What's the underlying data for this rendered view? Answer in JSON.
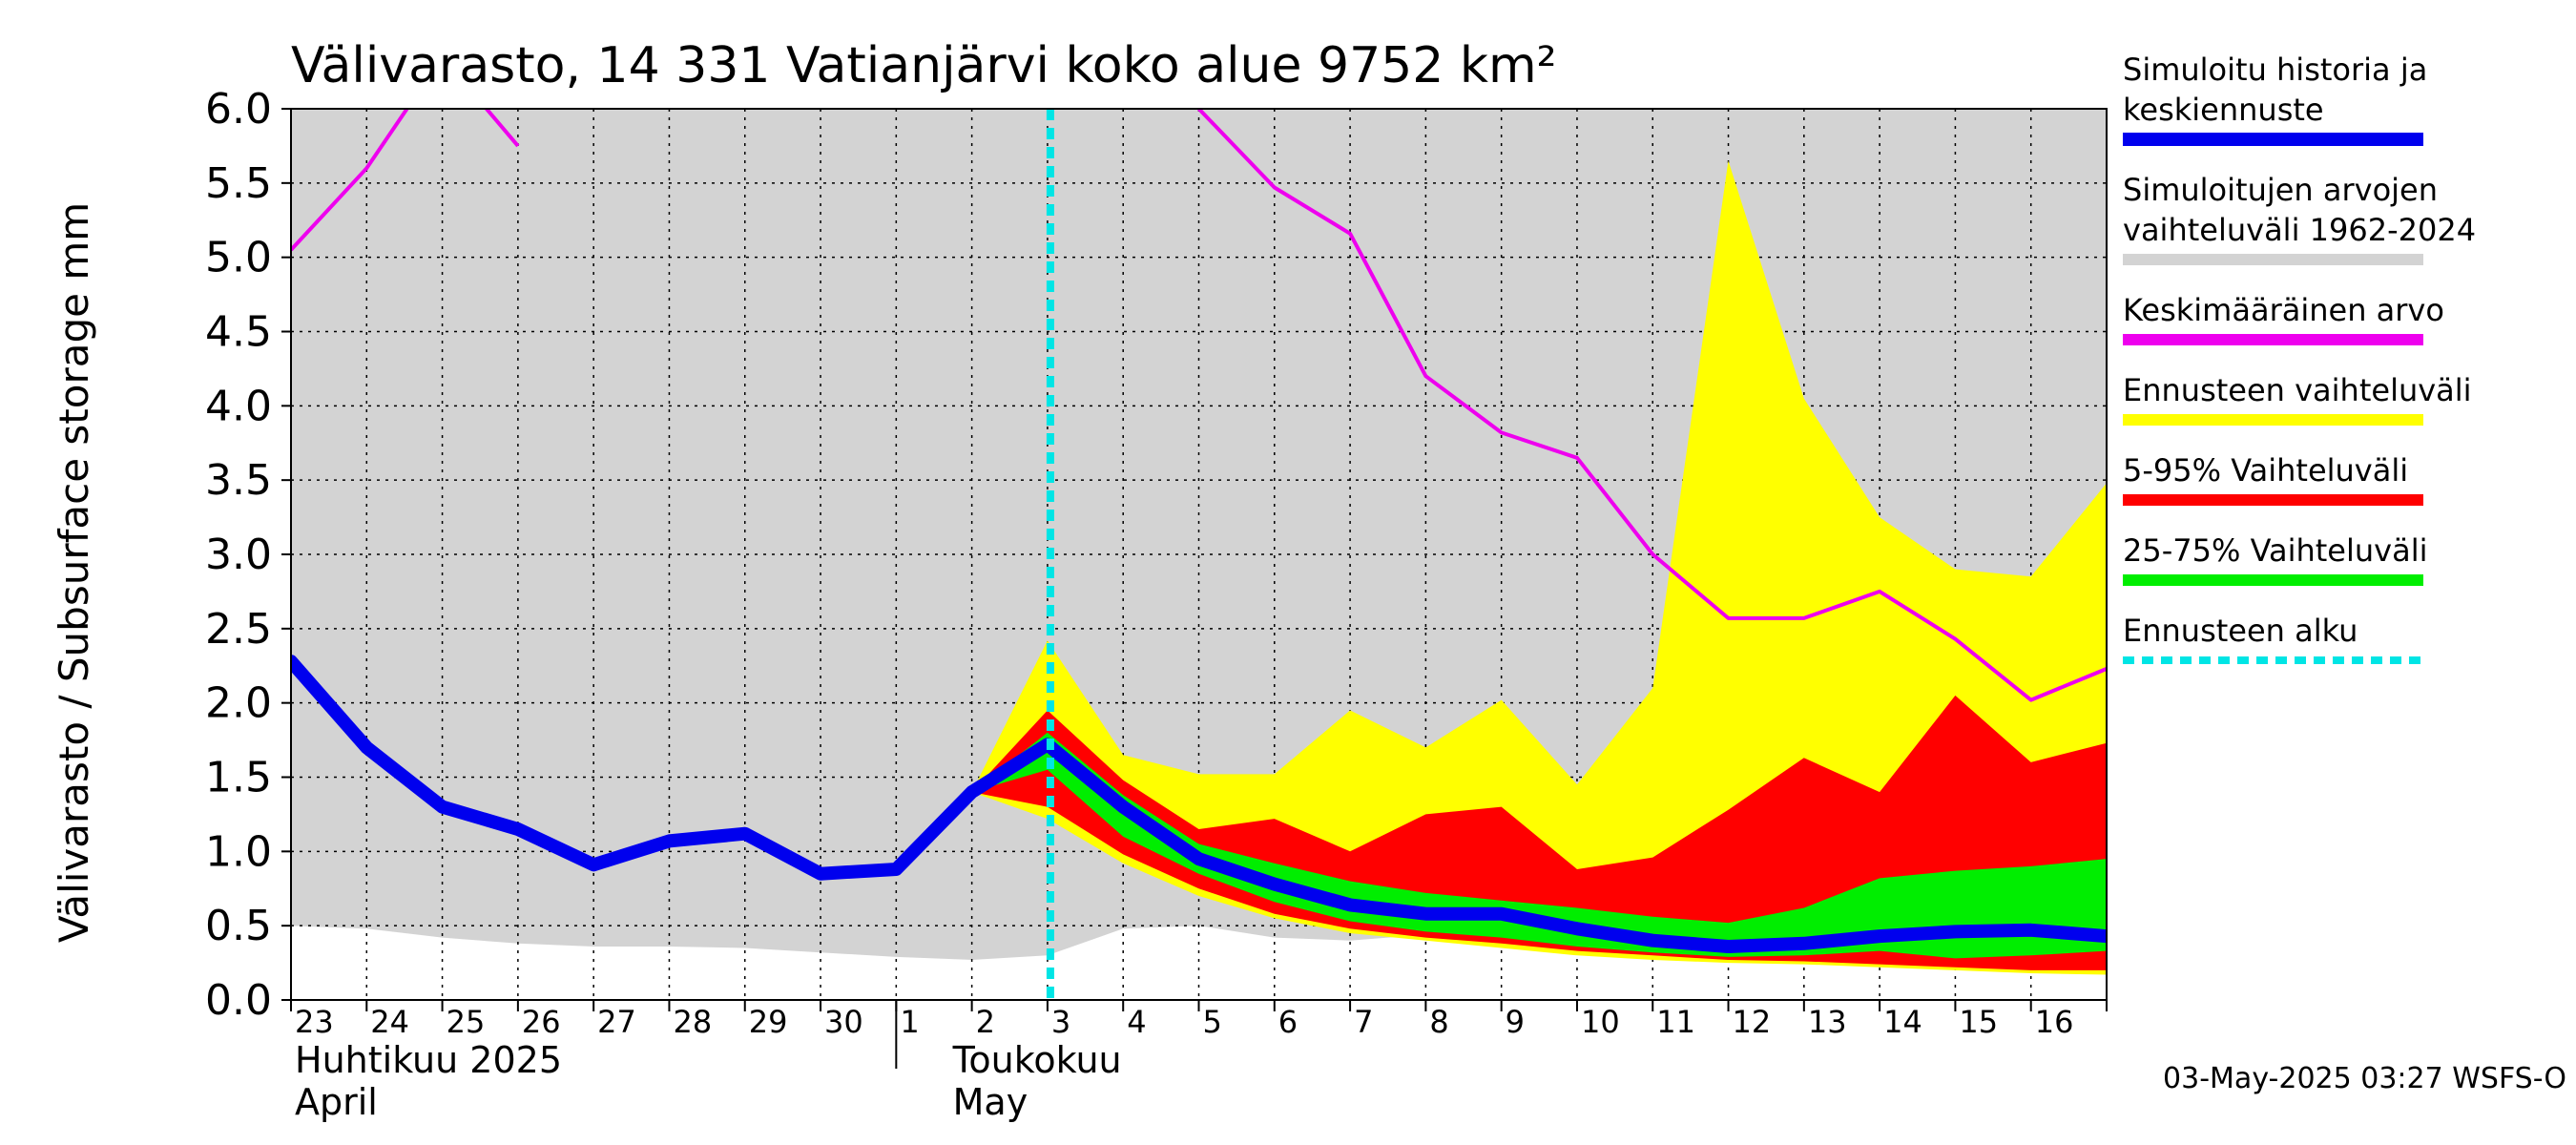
{
  "chart_data": {
    "type": "area",
    "title": "Välivarasto, 14 331 Vatianjärvi koko alue 9752 km²",
    "ylabel": "Välivarasto / Subsurface storage  mm",
    "ylim": [
      0,
      6
    ],
    "yticks": [
      "0.0",
      "0.5",
      "1.0",
      "1.5",
      "2.0",
      "2.5",
      "3.0",
      "3.5",
      "4.0",
      "4.5",
      "5.0",
      "5.5",
      "6.0"
    ],
    "x_day_labels": [
      "23",
      "24",
      "25",
      "26",
      "27",
      "28",
      "29",
      "30",
      "1",
      "2",
      "3",
      "4",
      "5",
      "6",
      "7",
      "8",
      "9",
      "10",
      "11",
      "12",
      "13",
      "14",
      "15",
      "16"
    ],
    "month_labels": [
      {
        "line1": "Huhtikuu  2025",
        "line2": "April"
      },
      {
        "line1": "Toukokuu",
        "line2": "May"
      }
    ],
    "x_dates": [
      "2025-04-23",
      "2025-04-24",
      "2025-04-25",
      "2025-04-26",
      "2025-04-27",
      "2025-04-28",
      "2025-04-29",
      "2025-04-30",
      "2025-05-01",
      "2025-05-02",
      "2025-05-03",
      "2025-05-04",
      "2025-05-05",
      "2025-05-06",
      "2025-05-07",
      "2025-05-08",
      "2025-05-09",
      "2025-05-10",
      "2025-05-11",
      "2025-05-12",
      "2025-05-13",
      "2025-05-14",
      "2025-05-15",
      "2025-05-16",
      "2025-05-17"
    ],
    "forecast_start": "2025-05-03",
    "series": [
      {
        "name": "Simuloitujen arvojen vaihteluväli 1962-2024",
        "color": "#d3d3d3",
        "lower": [
          0.5,
          0.48,
          0.42,
          0.38,
          0.36,
          0.36,
          0.35,
          0.32,
          0.29,
          0.27,
          0.3,
          0.48,
          0.5,
          0.42,
          0.4,
          0.44,
          0.48,
          0.5,
          0.54,
          0.55,
          0.5,
          0.44,
          0.4,
          0.38,
          0.36
        ],
        "upper": [
          6,
          6,
          6,
          6,
          6,
          6,
          6,
          6,
          6,
          6,
          6,
          6,
          6,
          6,
          6,
          6,
          6,
          6,
          6,
          6,
          6,
          6,
          6,
          6,
          6
        ]
      },
      {
        "name": "Ennusteen vaihteluväli",
        "color": "#ffff00",
        "x_start": "2025-05-02",
        "lower": [
          1.4,
          1.22,
          0.92,
          0.7,
          0.55,
          0.45,
          0.4,
          0.35,
          0.3,
          0.27,
          0.25,
          0.24,
          0.22,
          0.2,
          0.18,
          0.17
        ],
        "upper": [
          1.4,
          2.42,
          1.65,
          1.52,
          1.52,
          1.95,
          1.7,
          2.02,
          1.45,
          2.1,
          5.65,
          4.05,
          3.25,
          2.9,
          2.85,
          3.48
        ]
      },
      {
        "name": "5-95% Vaihteluväli",
        "color": "#ff0000",
        "x_start": "2025-05-02",
        "lower": [
          1.4,
          1.3,
          0.98,
          0.75,
          0.58,
          0.48,
          0.42,
          0.38,
          0.33,
          0.3,
          0.27,
          0.26,
          0.24,
          0.22,
          0.2,
          0.2
        ],
        "upper": [
          1.4,
          1.95,
          1.48,
          1.15,
          1.22,
          1.0,
          1.25,
          1.3,
          0.88,
          0.96,
          1.28,
          1.63,
          1.4,
          2.05,
          1.6,
          1.73
        ]
      },
      {
        "name": "25-75% Vaihteluväli",
        "color": "#00ee00",
        "x_start": "2025-05-02",
        "lower": [
          1.4,
          1.55,
          1.1,
          0.85,
          0.66,
          0.53,
          0.46,
          0.42,
          0.36,
          0.32,
          0.29,
          0.3,
          0.33,
          0.28,
          0.3,
          0.33
        ],
        "upper": [
          1.4,
          1.8,
          1.38,
          1.05,
          0.92,
          0.8,
          0.72,
          0.67,
          0.62,
          0.56,
          0.52,
          0.62,
          0.82,
          0.87,
          0.9,
          0.95
        ]
      },
      {
        "name": "Simuloitu historia ja keskiennuste",
        "color": "#0000ee",
        "values": [
          2.28,
          1.7,
          1.3,
          1.15,
          0.91,
          1.07,
          1.12,
          0.85,
          0.88,
          1.4,
          1.72,
          1.3,
          0.95,
          0.78,
          0.64,
          0.58,
          0.58,
          0.48,
          0.4,
          0.36,
          0.38,
          0.43,
          0.46,
          0.47,
          0.43
        ]
      },
      {
        "name": "Keskimääräinen arvo",
        "color": "#ee00ee",
        "values": [
          5.05,
          5.6,
          6.35,
          5.75,
          null,
          null,
          null,
          null,
          null,
          null,
          null,
          null,
          6.0,
          5.47,
          5.16,
          4.2,
          3.82,
          3.65,
          3.0,
          2.57,
          2.57,
          2.75,
          2.43,
          2.02,
          2.23
        ]
      }
    ]
  },
  "legend": [
    {
      "line1": "Simuloitu historia ja",
      "line2": "keskiennuste",
      "color": "#0000ee",
      "style": "solid"
    },
    {
      "line1": "Simuloitujen arvojen",
      "line2": "vaihteluväli 1962-2024",
      "color": "#d3d3d3",
      "style": "solid"
    },
    {
      "line1": "Keskimääräinen arvo",
      "line2": "",
      "color": "#ee00ee",
      "style": "solid"
    },
    {
      "line1": "Ennusteen vaihteluväli",
      "line2": "",
      "color": "#ffff00",
      "style": "solid"
    },
    {
      "line1": "5-95% Vaihteluväli",
      "line2": "",
      "color": "#ff0000",
      "style": "solid"
    },
    {
      "line1": "25-75% Vaihteluväli",
      "line2": "",
      "color": "#00ee00",
      "style": "solid"
    },
    {
      "line1": "Ennusteen alku",
      "line2": "",
      "color": "#00e5e5",
      "style": "dashed"
    }
  ],
  "footer": "03-May-2025 03:27 WSFS-O"
}
